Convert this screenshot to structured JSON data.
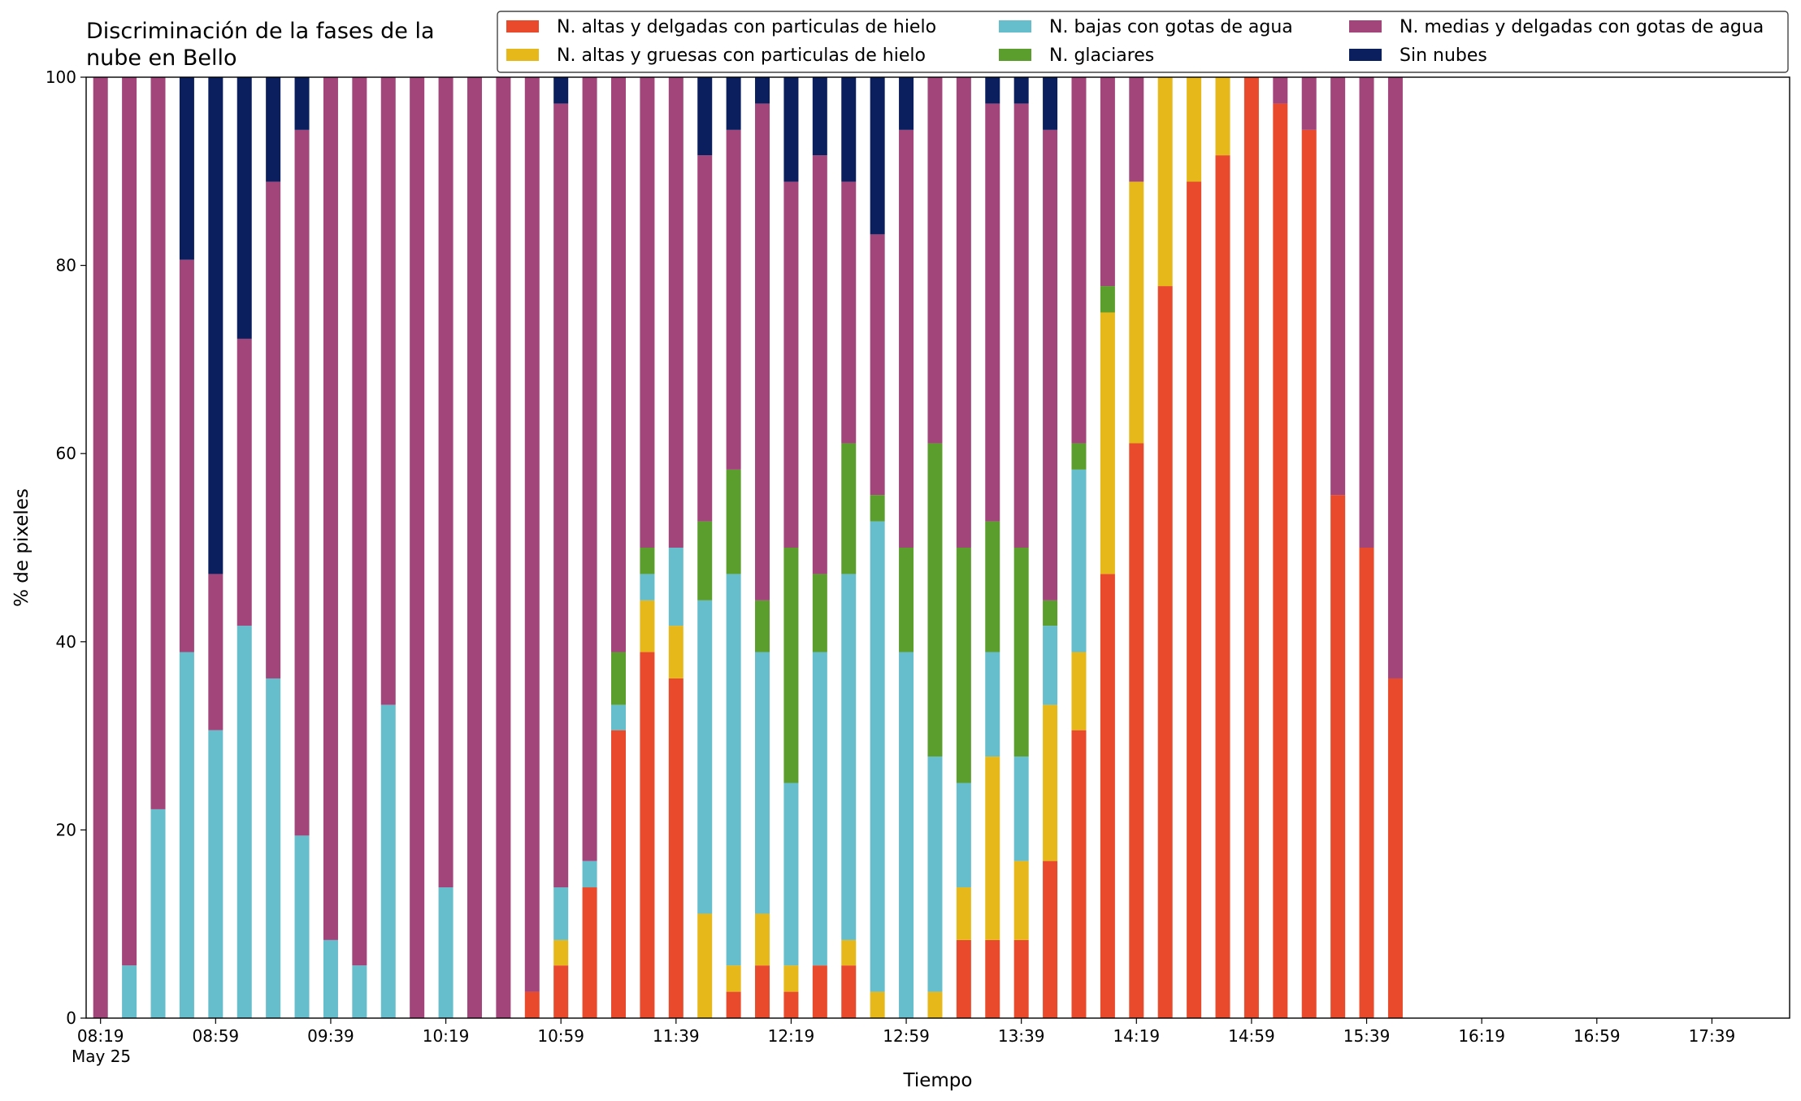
{
  "chart_data": {
    "type": "stacked_bar",
    "title": "Discriminación de la fases de la\nnube en Bello",
    "xlabel": "Tiempo",
    "ylabel": "% de pixeles",
    "x": [
      "08:19",
      "08:29",
      "08:39",
      "08:49",
      "08:59",
      "09:09",
      "09:19",
      "09:29",
      "09:39",
      "09:49",
      "09:59",
      "10:09",
      "10:19",
      "10:29",
      "10:39",
      "10:49",
      "10:59",
      "11:09",
      "11:19",
      "11:29",
      "11:39",
      "11:49",
      "11:59",
      "12:09",
      "12:19",
      "12:29",
      "12:39",
      "12:49",
      "12:59",
      "13:09",
      "13:19",
      "13:29",
      "13:39",
      "13:49",
      "13:59",
      "14:09",
      "14:19",
      "14:29",
      "14:39",
      "14:49",
      "14:59",
      "15:09",
      "15:19",
      "15:29",
      "15:39",
      "15:49"
    ],
    "xlim": [
      "08:14",
      "18:06"
    ],
    "xticks": [
      "08:19",
      "08:59",
      "09:39",
      "10:19",
      "10:59",
      "11:39",
      "12:19",
      "12:59",
      "13:39",
      "14:19",
      "14:59",
      "15:39",
      "16:19",
      "16:59",
      "17:39"
    ],
    "date_label": "May 25",
    "ylim": [
      0,
      100
    ],
    "yticks": [
      0,
      20,
      40,
      60,
      80,
      100
    ],
    "legend": "top-right",
    "series": [
      {
        "name": "N. altas y delgadas con particulas de hielo",
        "color": "#e84a2b",
        "values": [
          0,
          0,
          0,
          0,
          0,
          0,
          0,
          0,
          0,
          0,
          0,
          0,
          0,
          0,
          0,
          2.8,
          5.6,
          13.9,
          30.6,
          38.9,
          36.1,
          0,
          2.8,
          5.6,
          2.8,
          5.6,
          5.6,
          0,
          0,
          0,
          8.3,
          8.3,
          8.3,
          16.7,
          30.6,
          47.2,
          61.1,
          77.8,
          88.9,
          91.7,
          100,
          97.2,
          94.4,
          55.6,
          50,
          36.1
        ]
      },
      {
        "name": "N. altas y gruesas con particulas de hielo",
        "color": "#e6b81a",
        "values": [
          0,
          0,
          0,
          0,
          0,
          0,
          0,
          0,
          0,
          0,
          0,
          0,
          0,
          0,
          0,
          0,
          2.7,
          0,
          0,
          5.5,
          5.6,
          11.1,
          2.8,
          5.5,
          2.8,
          0,
          2.7,
          2.8,
          0,
          2.8,
          5.6,
          19.5,
          8.4,
          16.6,
          8.3,
          27.8,
          27.8,
          22.2,
          11.1,
          8.3,
          0,
          0,
          0,
          0,
          0,
          0
        ]
      },
      {
        "name": "N. bajas con gotas de agua",
        "color": "#66bdcb",
        "values": [
          0,
          5.6,
          22.2,
          38.9,
          30.6,
          41.7,
          36.1,
          19.4,
          8.3,
          5.6,
          33.3,
          0,
          13.9,
          0,
          0,
          0,
          5.6,
          2.8,
          2.7,
          2.8,
          8.3,
          33.3,
          41.6,
          27.8,
          19.4,
          33.3,
          38.9,
          50,
          38.9,
          25,
          11.1,
          11.1,
          11.1,
          8.4,
          19.4,
          0,
          0,
          0,
          0,
          0,
          0,
          0,
          0,
          0,
          0,
          0
        ]
      },
      {
        "name": "N. glaciares",
        "color": "#5c9e2d",
        "values": [
          0,
          0,
          0,
          0,
          0,
          0,
          0,
          0,
          0,
          0,
          0,
          0,
          0,
          0,
          0,
          0,
          0,
          0,
          5.6,
          2.8,
          0,
          8.4,
          11.1,
          5.5,
          25,
          8.3,
          13.9,
          2.8,
          11.1,
          33.3,
          25,
          13.9,
          22.2,
          2.7,
          2.8,
          2.8,
          0,
          0,
          0,
          0,
          0,
          0,
          0,
          0,
          0,
          0
        ]
      },
      {
        "name": "N. medias y delgadas con gotas de agua",
        "color": "#a1457a",
        "values": [
          100,
          94.4,
          77.8,
          41.7,
          16.6,
          30.5,
          52.8,
          75,
          91.7,
          94.4,
          66.7,
          100,
          86.1,
          100,
          100,
          97.2,
          83.3,
          83.3,
          61.1,
          50,
          50,
          38.9,
          36.1,
          52.8,
          38.9,
          44.5,
          27.8,
          27.7,
          44.4,
          38.9,
          50,
          44.4,
          47.2,
          50,
          38.9,
          22.2,
          11.1,
          0,
          0,
          0,
          0,
          2.8,
          5.6,
          44.4,
          50,
          63.9
        ]
      },
      {
        "name": "Sin nubes",
        "color": "#0b1f5e",
        "values": [
          0,
          0,
          0,
          19.4,
          52.8,
          27.8,
          11.1,
          5.6,
          0,
          0,
          0,
          0,
          0,
          0,
          0,
          0,
          2.8,
          0,
          0,
          0,
          0,
          8.3,
          5.6,
          2.8,
          11.1,
          8.3,
          11.1,
          16.7,
          5.6,
          0,
          0,
          2.8,
          2.8,
          5.6,
          0,
          0,
          0,
          0,
          0,
          0,
          0,
          0,
          0,
          0,
          0,
          0
        ]
      }
    ]
  }
}
